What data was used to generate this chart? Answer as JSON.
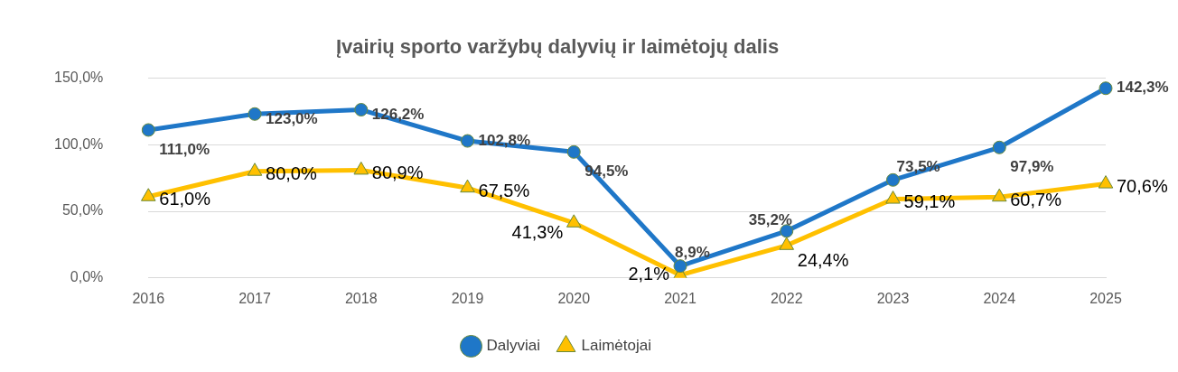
{
  "chart_data": {
    "type": "line",
    "title": "Įvairių sporto varžybų dalyvių ir laimėtojų dalis",
    "categories": [
      "2016",
      "2017",
      "2018",
      "2019",
      "2020",
      "2021",
      "2022",
      "2023",
      "2024",
      "2025"
    ],
    "series": [
      {
        "name": "Dalyviai",
        "color": "#1f77c8",
        "marker": "circle",
        "values": [
          111.0,
          123.0,
          126.2,
          102.8,
          94.5,
          8.9,
          35.2,
          73.5,
          97.9,
          142.3
        ],
        "value_labels": [
          "111,0%",
          "123,0%",
          "126,2%",
          "102,8%",
          "94,5%",
          "8,9%",
          "35,2%",
          "73,5%",
          "97,9%",
          "142,3%"
        ]
      },
      {
        "name": "Laimėtojai",
        "color": "#ffc000",
        "marker": "triangle",
        "values": [
          61.0,
          80.0,
          80.9,
          67.5,
          41.3,
          2.1,
          24.4,
          59.1,
          60.7,
          70.6
        ],
        "value_labels": [
          "61,0%",
          "80,0%",
          "80,9%",
          "67,5%",
          "41,3%",
          "2,1%",
          "24,4%",
          "59,1%",
          "60,7%",
          "70,6%"
        ]
      }
    ],
    "ylim": [
      0,
      150
    ],
    "yticks": [
      {
        "value": 0,
        "label": "0,0%"
      },
      {
        "value": 50,
        "label": "50,0%"
      },
      {
        "value": 100,
        "label": "100,0%"
      },
      {
        "value": 150,
        "label": "150,0%"
      }
    ],
    "grid": "y",
    "legend": "bottom",
    "line_style": "solid"
  }
}
